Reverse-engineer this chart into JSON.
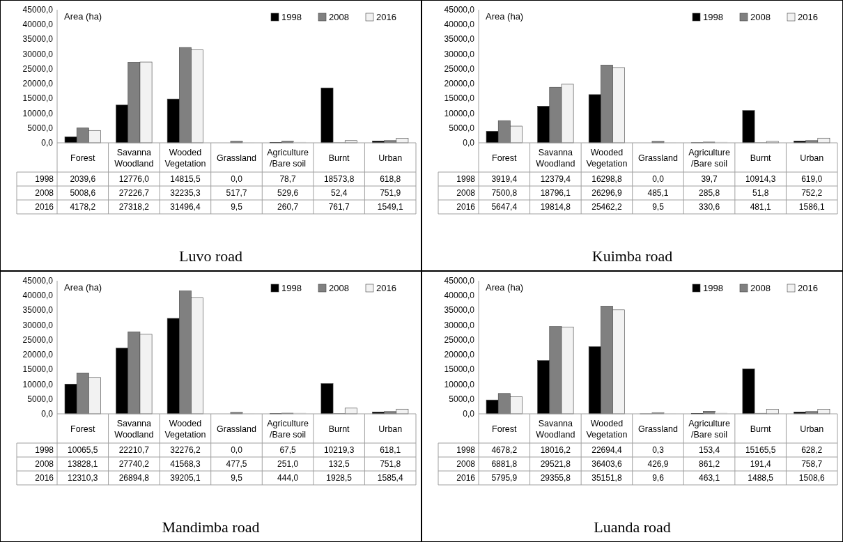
{
  "chart_data": [
    {
      "type": "bar",
      "title": "Luvo road",
      "ylabel": "Area (ha)",
      "categories": [
        "Forest",
        "Savanna Woodland",
        "Wooded Vegetation",
        "Grassland",
        "Agriculture /Bare soil",
        "Burnt",
        "Urban"
      ],
      "ylim": [
        0,
        45000
      ],
      "yticks": [
        {
          "value": 0,
          "label": "0,0"
        },
        {
          "value": 5000,
          "label": "5000,0"
        },
        {
          "value": 10000,
          "label": "10000,0"
        },
        {
          "value": 15000,
          "label": "15000,0"
        },
        {
          "value": 20000,
          "label": "20000,0"
        },
        {
          "value": 25000,
          "label": "25000,0"
        },
        {
          "value": 30000,
          "label": "30000,0"
        },
        {
          "value": 35000,
          "label": "35000,0"
        },
        {
          "value": 40000,
          "label": "40000,0"
        },
        {
          "value": 45000,
          "label": "45000,0"
        }
      ],
      "legend": "top right",
      "series": [
        {
          "name": "1998",
          "color": "#000000",
          "values": [
            2039.6,
            12776.0,
            14815.5,
            0.0,
            78.7,
            18573.8,
            618.8
          ],
          "value_labels": [
            "2039,6",
            "12776,0",
            "14815,5",
            "0,0",
            "78,7",
            "18573,8",
            "618,8"
          ]
        },
        {
          "name": "2008",
          "color": "#808080",
          "values": [
            5008.6,
            27226.7,
            32235.3,
            517.7,
            529.6,
            52.4,
            751.9
          ],
          "value_labels": [
            "5008,6",
            "27226,7",
            "32235,3",
            "517,7",
            "529,6",
            "52,4",
            "751,9"
          ]
        },
        {
          "name": "2016",
          "color": "#f2f2f2",
          "values": [
            4178.2,
            27318.2,
            31496.4,
            9.5,
            260.7,
            761.7,
            1549.1
          ],
          "value_labels": [
            "4178,2",
            "27318,2",
            "31496,4",
            "9,5",
            "260,7",
            "761,7",
            "1549,1"
          ]
        }
      ]
    },
    {
      "type": "bar",
      "title": "Kuimba road",
      "ylabel": "Area (ha)",
      "categories": [
        "Forest",
        "Savanna Woodland",
        "Wooded Vegetation",
        "Grassland",
        "Agriculture /Bare soil",
        "Burnt",
        "Urban"
      ],
      "ylim": [
        0,
        45000
      ],
      "yticks": [
        {
          "value": 0,
          "label": "0,0"
        },
        {
          "value": 5000,
          "label": "5000,0"
        },
        {
          "value": 10000,
          "label": "10000,0"
        },
        {
          "value": 15000,
          "label": "15000,0"
        },
        {
          "value": 20000,
          "label": "20000,0"
        },
        {
          "value": 25000,
          "label": "25000,0"
        },
        {
          "value": 30000,
          "label": "30000,0"
        },
        {
          "value": 35000,
          "label": "35000,0"
        },
        {
          "value": 40000,
          "label": "40000,0"
        },
        {
          "value": 45000,
          "label": "45000,0"
        }
      ],
      "legend": "top right",
      "series": [
        {
          "name": "1998",
          "color": "#000000",
          "values": [
            3919.4,
            12379.4,
            16298.8,
            0.0,
            39.7,
            10914.3,
            619.0
          ],
          "value_labels": [
            "3919,4",
            "12379,4",
            "16298,8",
            "0,0",
            "39,7",
            "10914,3",
            "619,0"
          ]
        },
        {
          "name": "2008",
          "color": "#808080",
          "values": [
            7500.8,
            18796.1,
            26296.9,
            485.1,
            285.8,
            51.8,
            752.2
          ],
          "value_labels": [
            "7500,8",
            "18796,1",
            "26296,9",
            "485,1",
            "285,8",
            "51,8",
            "752,2"
          ]
        },
        {
          "name": "2016",
          "color": "#f2f2f2",
          "values": [
            5647.4,
            19814.8,
            25462.2,
            9.5,
            330.6,
            481.1,
            1586.1
          ],
          "value_labels": [
            "5647,4",
            "19814,8",
            "25462,2",
            "9,5",
            "330,6",
            "481,1",
            "1586,1"
          ]
        }
      ]
    },
    {
      "type": "bar",
      "title": "Mandimba road",
      "ylabel": "Area (ha)",
      "categories": [
        "Forest",
        "Savanna Woodland",
        "Wooded Vegetation",
        "Grassland",
        "Agriculture /Bare soil",
        "Burnt",
        "Urban"
      ],
      "ylim": [
        0,
        45000
      ],
      "yticks": [
        {
          "value": 0,
          "label": "0,0"
        },
        {
          "value": 5000,
          "label": "5000,0"
        },
        {
          "value": 10000,
          "label": "10000,0"
        },
        {
          "value": 15000,
          "label": "15000,0"
        },
        {
          "value": 20000,
          "label": "20000,0"
        },
        {
          "value": 25000,
          "label": "25000,0"
        },
        {
          "value": 30000,
          "label": "30000,0"
        },
        {
          "value": 35000,
          "label": "35000,0"
        },
        {
          "value": 40000,
          "label": "40000,0"
        },
        {
          "value": 45000,
          "label": "45000,0"
        }
      ],
      "legend": "top right",
      "series": [
        {
          "name": "1998",
          "color": "#000000",
          "values": [
            10065.5,
            22210.7,
            32276.2,
            0.0,
            67.5,
            10219.3,
            618.1
          ],
          "value_labels": [
            "10065,5",
            "22210,7",
            "32276,2",
            "0,0",
            "67,5",
            "10219,3",
            "618,1"
          ]
        },
        {
          "name": "2008",
          "color": "#808080",
          "values": [
            13828.1,
            27740.2,
            41568.3,
            477.5,
            251.0,
            132.5,
            751.8
          ],
          "value_labels": [
            "13828,1",
            "27740,2",
            "41568,3",
            "477,5",
            "251,0",
            "132,5",
            "751,8"
          ]
        },
        {
          "name": "2016",
          "color": "#f2f2f2",
          "values": [
            12310.3,
            26894.8,
            39205.1,
            9.5,
            444.0,
            1928.5,
            1585.4
          ],
          "value_labels": [
            "12310,3",
            "26894,8",
            "39205,1",
            "9,5",
            "444,0",
            "1928,5",
            "1585,4"
          ]
        }
      ]
    },
    {
      "type": "bar",
      "title": "Luanda road",
      "ylabel": "Area (ha)",
      "categories": [
        "Forest",
        "Savanna Woodland",
        "Wooded Vegetation",
        "Grassland",
        "Agriculture /Bare soil",
        "Burnt",
        "Urban"
      ],
      "ylim": [
        0,
        45000
      ],
      "yticks": [
        {
          "value": 0,
          "label": "0,0"
        },
        {
          "value": 5000,
          "label": "5000,0"
        },
        {
          "value": 10000,
          "label": "10000,0"
        },
        {
          "value": 15000,
          "label": "15000,0"
        },
        {
          "value": 20000,
          "label": "20000,0"
        },
        {
          "value": 25000,
          "label": "25000,0"
        },
        {
          "value": 30000,
          "label": "30000,0"
        },
        {
          "value": 35000,
          "label": "35000,0"
        },
        {
          "value": 40000,
          "label": "40000,0"
        },
        {
          "value": 45000,
          "label": "45000,0"
        }
      ],
      "legend": "top right",
      "series": [
        {
          "name": "1998",
          "color": "#000000",
          "values": [
            4678.2,
            18016.2,
            22694.4,
            0.3,
            153.4,
            15165.5,
            628.2
          ],
          "value_labels": [
            "4678,2",
            "18016,2",
            "22694,4",
            "0,3",
            "153,4",
            "15165,5",
            "628,2"
          ]
        },
        {
          "name": "2008",
          "color": "#808080",
          "values": [
            6881.8,
            29521.8,
            36403.6,
            426.9,
            861.2,
            191.4,
            758.7
          ],
          "value_labels": [
            "6881,8",
            "29521,8",
            "36403,6",
            "426,9",
            "861,2",
            "191,4",
            "758,7"
          ]
        },
        {
          "name": "2016",
          "color": "#f2f2f2",
          "values": [
            5795.9,
            29355.8,
            35151.8,
            9.6,
            463.1,
            1488.5,
            1508.6
          ],
          "value_labels": [
            "5795,9",
            "29355,8",
            "35151,8",
            "9,6",
            "463,1",
            "1488,5",
            "1508,6"
          ]
        }
      ]
    }
  ]
}
